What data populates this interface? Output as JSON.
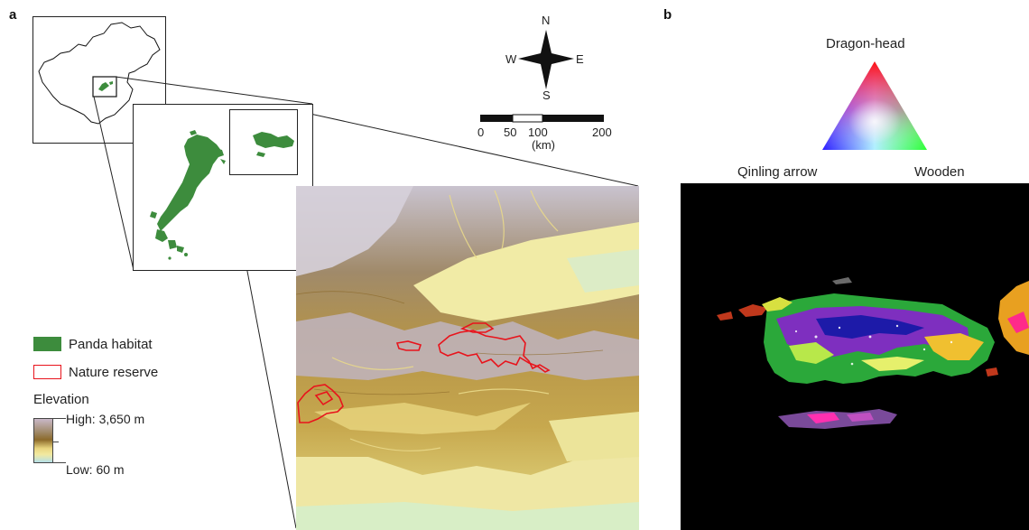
{
  "panel_a": {
    "letter": "a",
    "compass": {
      "north": "N",
      "south": "S",
      "east": "E",
      "west": "W"
    },
    "scale_bar": {
      "ticks": [
        "0",
        "50",
        "100",
        "200"
      ],
      "unit": "(km)"
    },
    "legend": {
      "habitat_label": "Panda habitat",
      "reserve_label": "Nature reserve",
      "elevation_title": "Elevation",
      "elevation_high": "High: 3,650 m",
      "elevation_low": "Low: 60 m"
    },
    "colors": {
      "habitat": "#3d8c3d",
      "reserve": "#e8141c",
      "elev_high": "#c9b8c8",
      "elev_mid": "#8c6a2a",
      "elev_low_mid": "#f2e9a0",
      "elev_low": "#b5e0e8"
    }
  },
  "panel_b": {
    "letter": "b",
    "triangle_labels": {
      "top": "Dragon-head",
      "bottom_left": "Qinling arrow",
      "bottom_right": "Wooden"
    },
    "colors": {
      "background": "#000000"
    }
  }
}
